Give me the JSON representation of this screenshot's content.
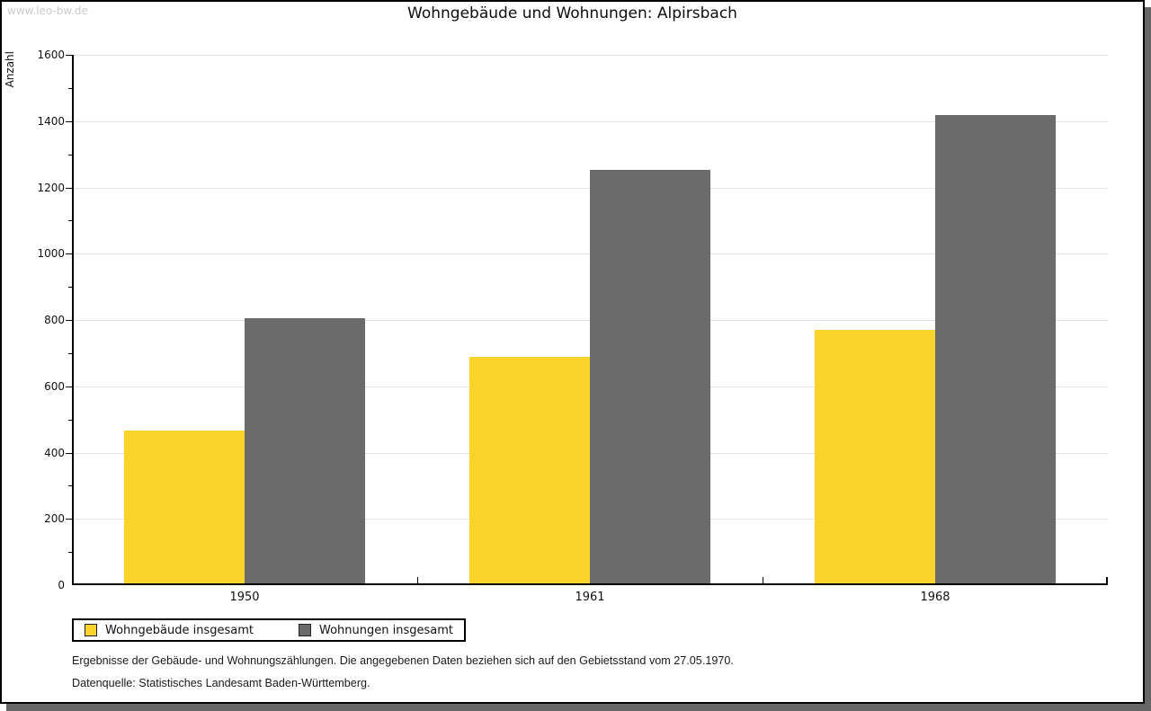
{
  "watermark": "www.leo-bw.de",
  "chart_data": {
    "type": "bar",
    "title": "Wohngebäude und Wohnungen: Alpirsbach",
    "xlabel": "",
    "ylabel": "Anzahl",
    "categories": [
      "1950",
      "1961",
      "1968"
    ],
    "series": [
      {
        "name": "Wohngebäude insgesamt",
        "color": "#FCD32D",
        "values": [
          460,
          683,
          766
        ]
      },
      {
        "name": "Wohnungen insgesamt",
        "color": "#6B6B6B",
        "values": [
          800,
          1247,
          1414
        ]
      }
    ],
    "ylim": [
      0,
      1600
    ],
    "ytick_step": 200,
    "minor_tick_step": 100,
    "grid": "horizontal-major",
    "legend_position": "bottom-left"
  },
  "footnotes": [
    "Ergebnisse der Gebäude- und Wohnungszählungen. Die angegebenen Daten beziehen sich auf den Gebietsstand vom 27.05.1970.",
    "Datenquelle: Statistisches Landesamt Baden-Württemberg."
  ],
  "colors": {
    "bar_yellow": "#FCD32D",
    "bar_gray": "#6B6B6B",
    "gridline": "#E2E2E2",
    "axis": "#000000",
    "watermark": "#CBCBCB",
    "frame_shadow": "#666666"
  }
}
